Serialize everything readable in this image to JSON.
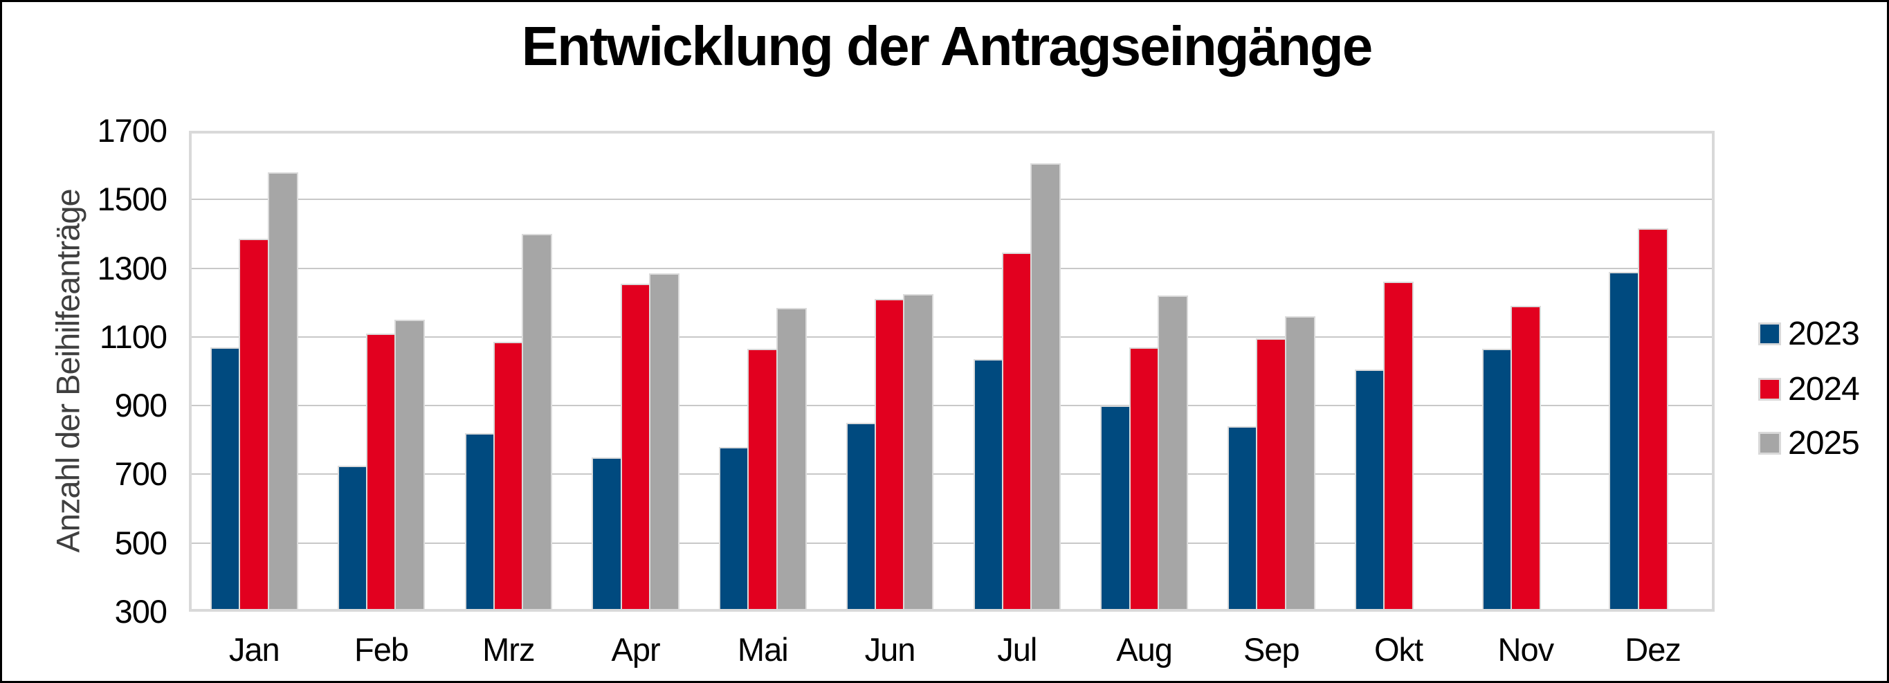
{
  "chart_data": {
    "type": "bar",
    "title": "Entwicklung der Antragseingänge",
    "ylabel": "Anzahl der Beihilfeanträge",
    "xlabel": "",
    "categories": [
      "Jan",
      "Feb",
      "Mrz",
      "Apr",
      "Mai",
      "Jun",
      "Jul",
      "Aug",
      "Sep",
      "Okt",
      "Nov",
      "Dez"
    ],
    "series": [
      {
        "name": "2023",
        "color": "#004a7f",
        "values": [
          1070,
          725,
          820,
          750,
          780,
          850,
          1035,
          900,
          840,
          1005,
          1065,
          1290
        ]
      },
      {
        "name": "2024",
        "color": "#e2001f",
        "values": [
          1385,
          1110,
          1085,
          1255,
          1065,
          1210,
          1345,
          1070,
          1095,
          1260,
          1190,
          1415
        ]
      },
      {
        "name": "2025",
        "color": "#a6a6a6",
        "values": [
          1580,
          1150,
          1400,
          1285,
          1185,
          1225,
          1605,
          1220,
          1160,
          null,
          null,
          null
        ]
      }
    ],
    "ylim": [
      300,
      1700
    ],
    "yticks": [
      300,
      500,
      700,
      900,
      1100,
      1300,
      1500,
      1700
    ],
    "grid": true,
    "legend_position": "right",
    "colors": {
      "bar_outline": "#dbdbdb",
      "gridline": "#c8c8c8",
      "plot_border": "#d9d9d9",
      "axis_title_text": "#3f3f3f",
      "text": "#000000"
    }
  }
}
